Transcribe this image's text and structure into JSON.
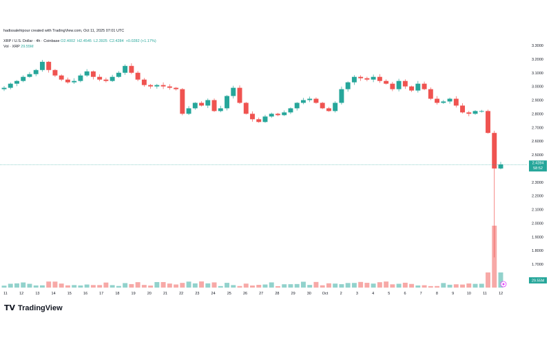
{
  "header": {
    "created": "hadissalehipour created with TradingView.com, Oct 11, 2025 07:01 UTC"
  },
  "legend": {
    "title": "XRP / U.S. Dollar · 4h · Coinbase",
    "open": "O2.4002",
    "high": "H2.4545",
    "low": "L2.3925",
    "close": "C2.4284",
    "change": "+0.0282 (+1.17%)",
    "vol_label": "Vol · XRP",
    "vol_value": "29.55M"
  },
  "brand": {
    "name": "TradingView",
    "mark": "TV"
  },
  "chart_data": {
    "type": "candlestick",
    "symbol": "XRP / U.S. Dollar",
    "interval": "4h",
    "exchange": "Coinbase",
    "y_ticks": [
      "3.3000",
      "3.2000",
      "3.1000",
      "3.0000",
      "2.9000",
      "2.8000",
      "2.7000",
      "2.6000",
      "2.5000",
      "2.4000",
      "2.3000",
      "2.2000",
      "2.1000",
      "2.0000",
      "1.9000",
      "1.8000",
      "1.7000"
    ],
    "ylim": [
      1.7,
      3.3
    ],
    "x_ticks": [
      "11",
      "12",
      "13",
      "14",
      "15",
      "16",
      "17",
      "18",
      "19",
      "20",
      "21",
      "22",
      "23",
      "24",
      "25",
      "26",
      "27",
      "28",
      "29",
      "30",
      "Oct",
      "2",
      "3",
      "4",
      "5",
      "6",
      "7",
      "8",
      "9",
      "10",
      "11",
      "12"
    ],
    "last_price": "2.4284",
    "countdown": "58:52",
    "volume_last": "29.55M",
    "close_path": [
      2.99,
      3.02,
      3.04,
      3.07,
      3.09,
      3.12,
      3.18,
      3.12,
      3.08,
      3.05,
      3.03,
      3.04,
      3.08,
      3.11,
      3.07,
      3.05,
      3.04,
      3.07,
      3.1,
      3.15,
      3.1,
      3.05,
      3.01,
      3.0,
      3.01,
      3.0,
      2.99,
      2.98,
      2.8,
      2.84,
      2.88,
      2.86,
      2.9,
      2.82,
      2.84,
      2.93,
      2.99,
      2.88,
      2.8,
      2.76,
      2.74,
      2.78,
      2.8,
      2.79,
      2.81,
      2.84,
      2.88,
      2.9,
      2.91,
      2.88,
      2.84,
      2.82,
      2.88,
      2.98,
      3.03,
      3.07,
      3.06,
      3.05,
      3.07,
      3.04,
      3.02,
      2.98,
      3.04,
      3.0,
      2.97,
      3.02,
      2.98,
      2.91,
      2.88,
      2.89,
      2.91,
      2.86,
      2.81,
      2.8,
      2.82,
      2.82,
      2.66,
      2.4,
      2.43
    ]
  }
}
